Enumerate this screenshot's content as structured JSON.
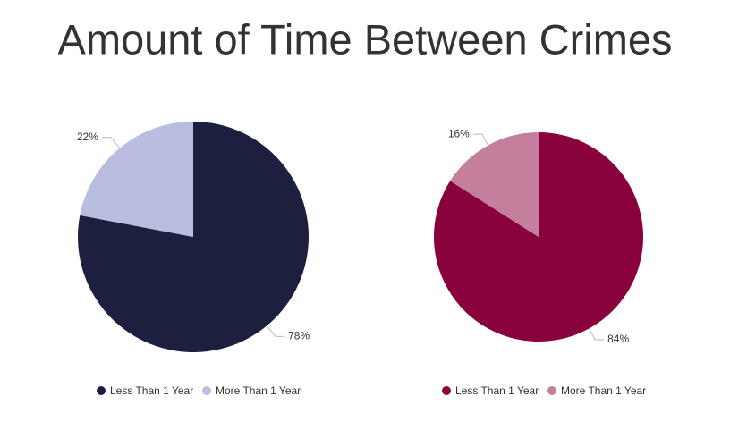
{
  "title": "Amount of Time Between Crimes",
  "chart_data": [
    {
      "type": "pie",
      "categories": [
        "Less Than 1 Year",
        "More Than 1 Year"
      ],
      "values": [
        78,
        22
      ],
      "value_labels": [
        "78%",
        "22%"
      ],
      "colors": [
        "#1c1f3d",
        "#b9bddf"
      ]
    },
    {
      "type": "pie",
      "categories": [
        "Less Than 1 Year",
        "More Than 1 Year"
      ],
      "values": [
        84,
        16
      ],
      "value_labels": [
        "84%",
        "16%"
      ],
      "colors": [
        "#8a023b",
        "#c47f9d"
      ]
    }
  ]
}
